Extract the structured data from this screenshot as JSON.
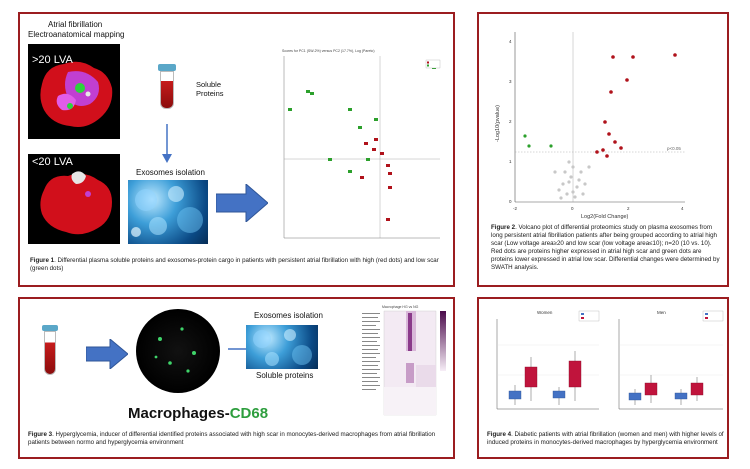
{
  "panel1": {
    "heading_line1": "Atrial fibrillation",
    "heading_line2": "Electroanatomical mapping",
    "lva_high": ">20 LVA",
    "lva_low": "<20 LVA",
    "soluble_line1": "Soluble",
    "soluble_line2": "Proteins",
    "exosomes_isolation": "Exosomes isolation",
    "figure_label": "Figure 1",
    "caption": ". Differential plasma soluble proteins and exosomes-protein cargo in patients with persistent atrial fibrillation with high (red dots) and low scar (green dots)"
  },
  "panel2": {
    "y_axis_label": "-Log10(pvalue)",
    "x_axis_label": "Log2(Fold Change)",
    "threshold_label": "p<0.05",
    "figure_label": "Figure 2",
    "caption": ". Volcano plot of differential proteomics study on plasma exosomes from long persistent atrial fibrillation patients after being grouped according to atrial high scar (Low voltage area≥20 and low scar (low voltage area≤10); n=20 (10 vs. 10). Red dots are proteins higher expressed in atrial high scar and green dots are proteins lower expressed in atrial low scar. Differential changes were determined by SWATH analysis.",
    "x_ticks": [
      "-2",
      "0",
      "2",
      "4"
    ],
    "y_ticks": [
      "0",
      "1",
      "2",
      "3",
      "4"
    ]
  },
  "panel3": {
    "exosomes_isolation": "Exosomes isolation",
    "soluble_proteins": "Soluble proteins",
    "macrophages_prefix": "Macrophages-",
    "macrophages_marker": "CD68",
    "figure_label": "Figure 3",
    "caption": ". Hyperglycemia, inducer of differential identified proteins associated with high scar in monocytes-derived macrophages from atrial fibrillation patients between normo and hyperglycemia environment"
  },
  "panel4": {
    "left_title": "Women",
    "right_title": "Men",
    "figure_label": "Figure 4",
    "caption": ". Diabetic patients with atrial fibrillation (women and men) with higher levels of induced proteins in monocytes-derived macrophages by hyperglycemia environment"
  },
  "colors": {
    "panel_border": "#9b1d20",
    "high_scar": "#b0121b",
    "low_scar": "#2ca02c",
    "arrow_blue": "#4472c4",
    "cd68_green": "#2e9e3e"
  }
}
